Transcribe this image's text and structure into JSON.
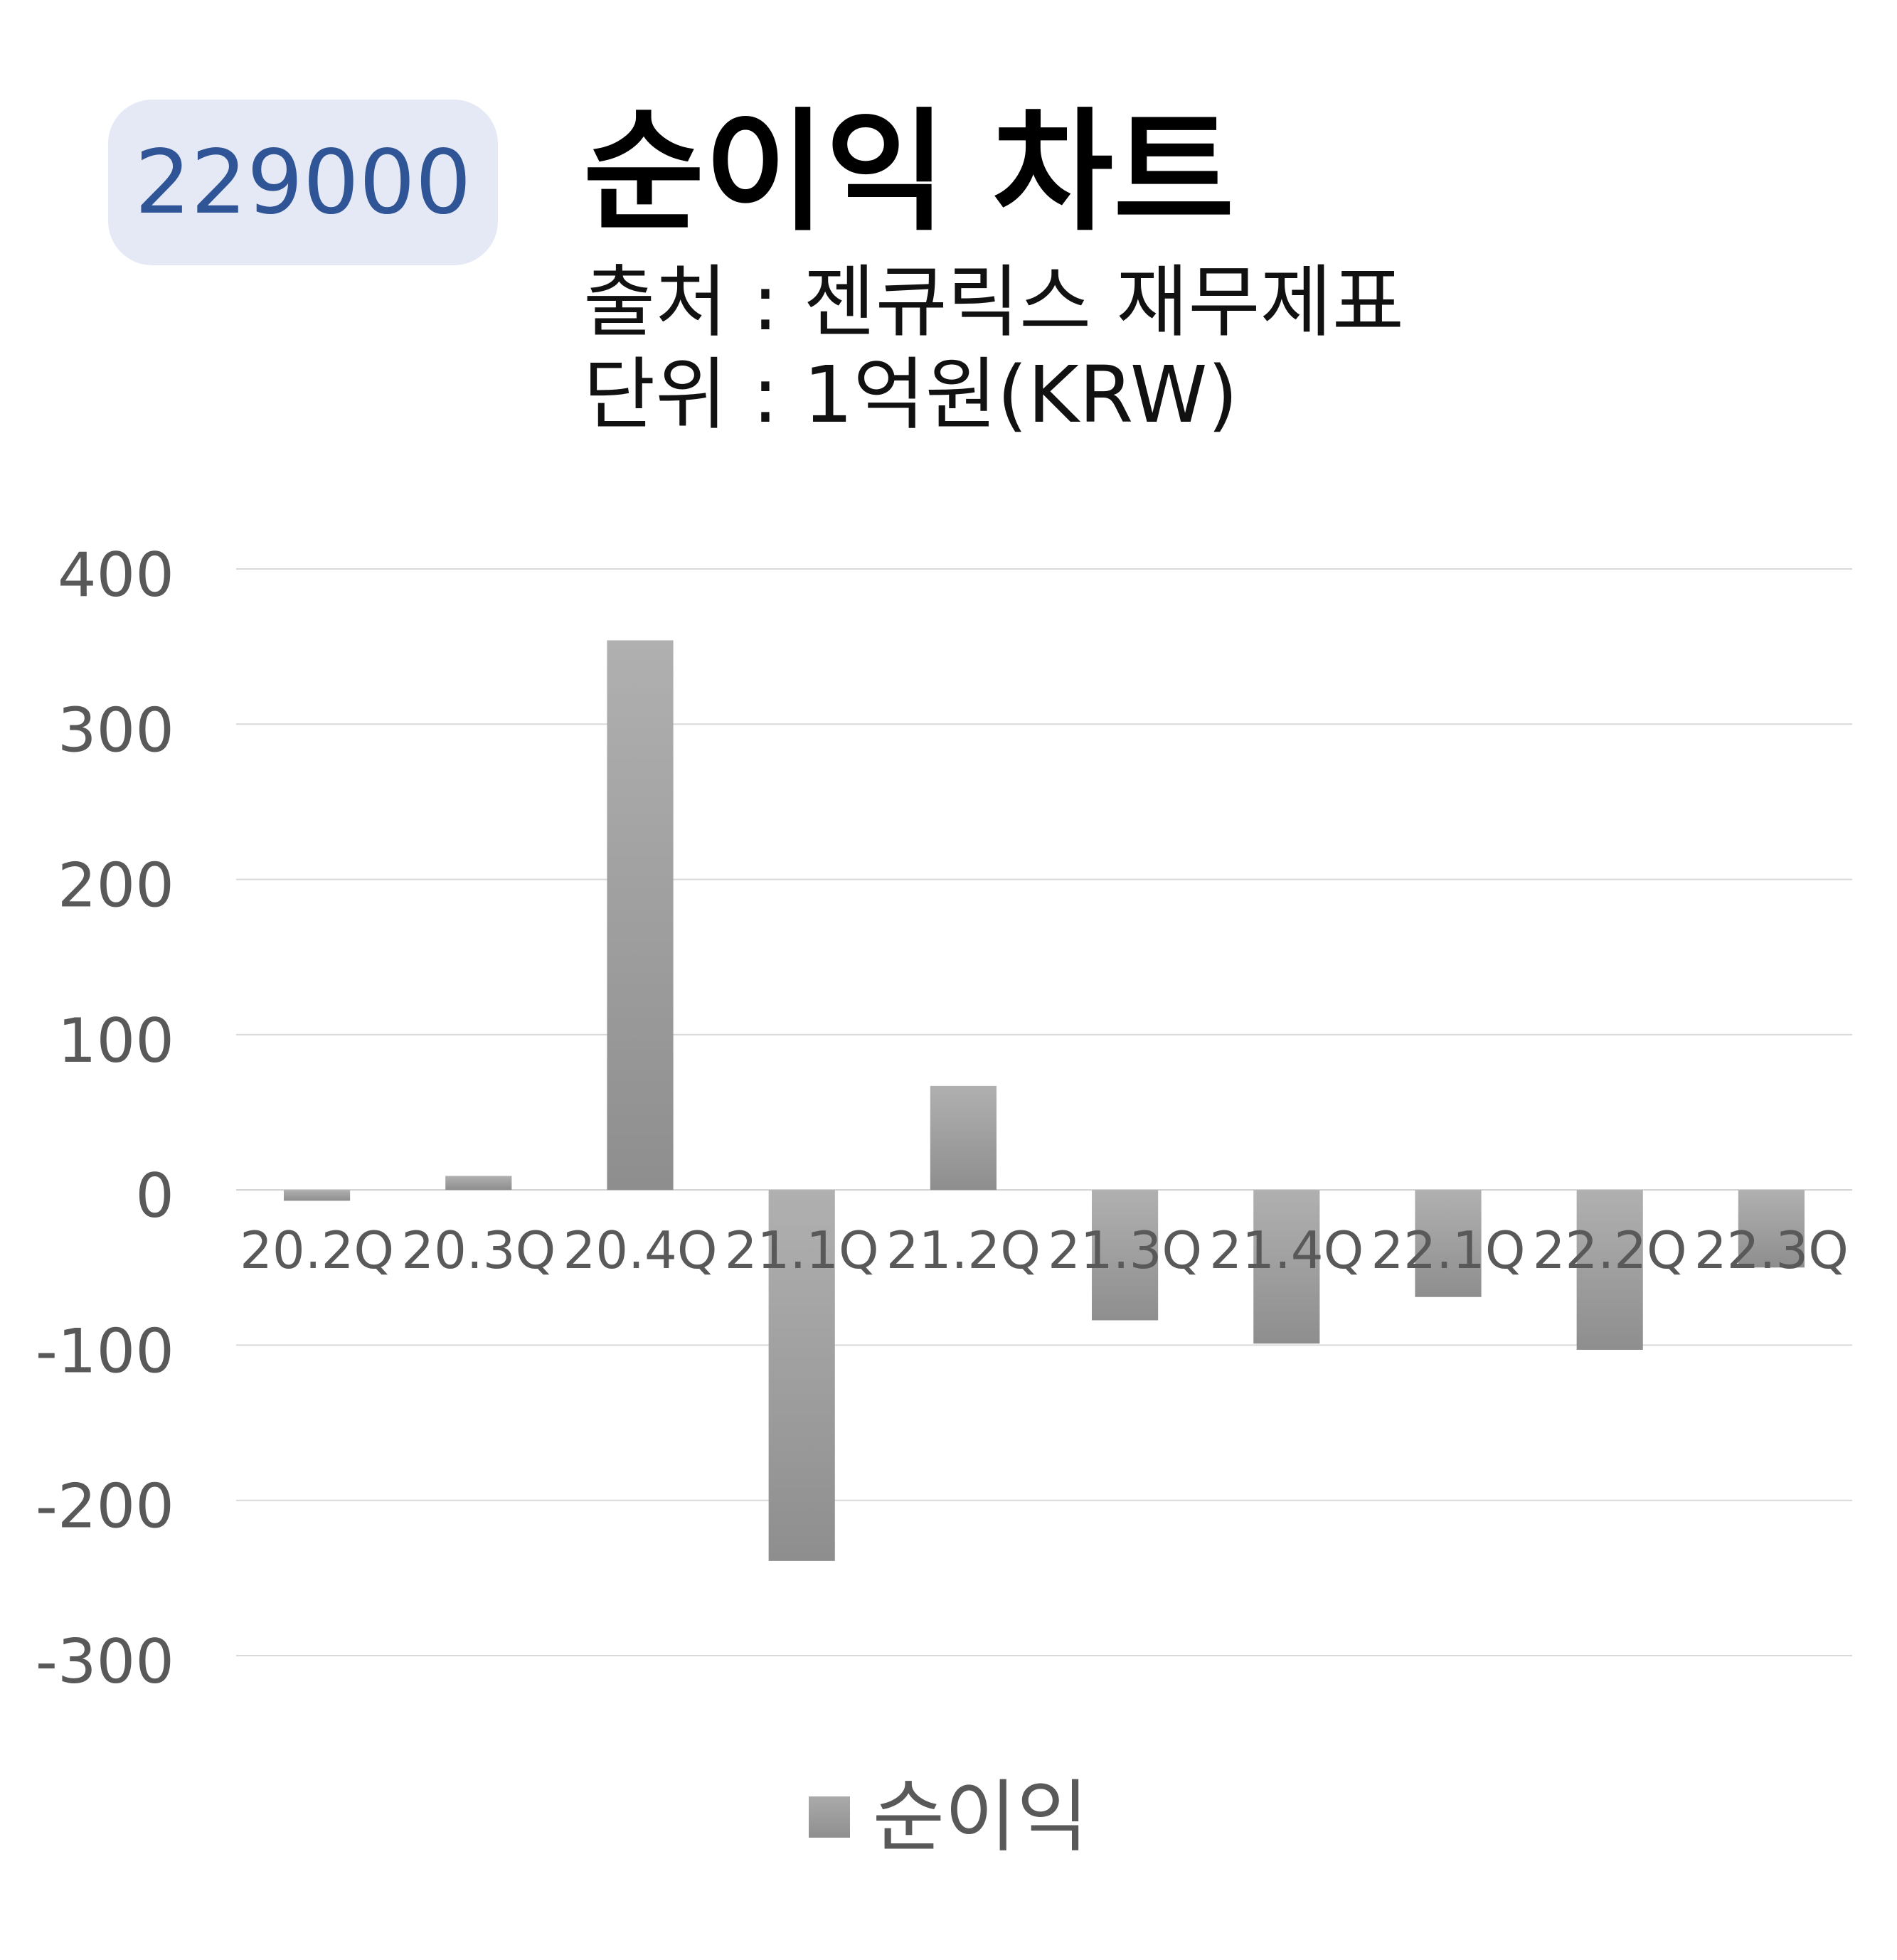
{
  "badge": "229000",
  "chart_data": {
    "type": "bar",
    "title": "순이익 차트",
    "subtitle_lines": [
      "출처 : 젠큐릭스 재무제표",
      "단위 : 1억원(KRW)"
    ],
    "categories": [
      "20.2Q",
      "20.3Q",
      "20.4Q",
      "21.1Q",
      "21.2Q",
      "21.3Q",
      "21.4Q",
      "22.1Q",
      "22.2Q",
      "22.3Q"
    ],
    "series": [
      {
        "name": "순이익",
        "values": [
          -7,
          9,
          354,
          -239,
          67,
          -84,
          -99,
          -69,
          -103,
          -50
        ]
      }
    ],
    "yticks": [
      "400",
      "300",
      "200",
      "100",
      "0",
      "-100",
      "-200",
      "-300"
    ],
    "ylim": [
      -300,
      400
    ],
    "grid": true,
    "legend": "bottom",
    "colors": {
      "bar": "#9e9e9e",
      "grid": "#d9d9d9",
      "tick": "#595959"
    }
  }
}
